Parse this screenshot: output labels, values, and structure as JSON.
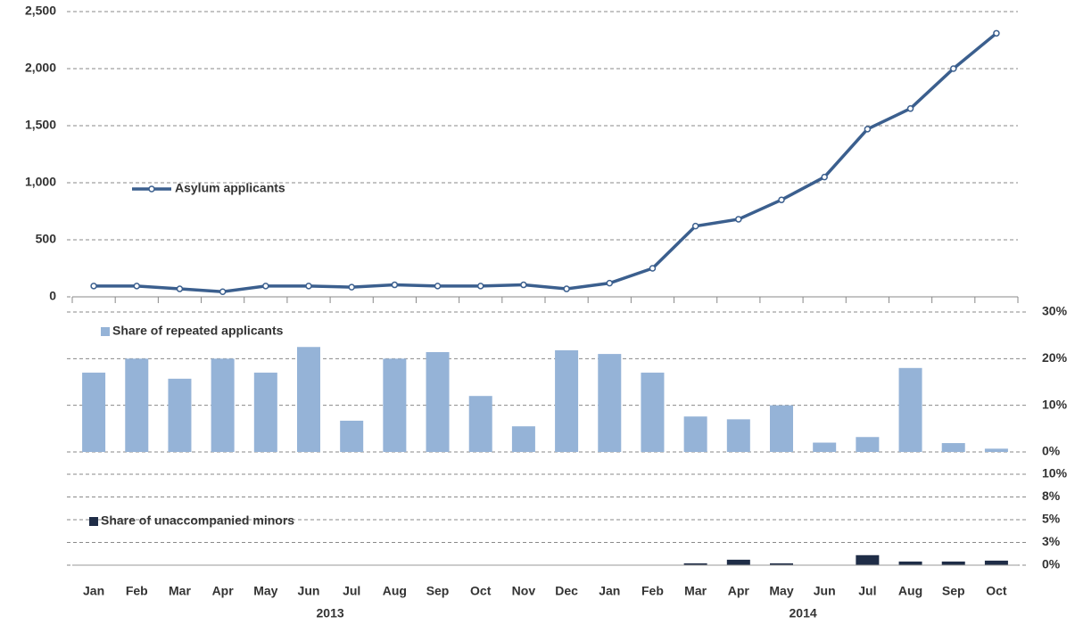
{
  "chart_data": [
    {
      "type": "line",
      "series": [
        {
          "name": "Asylum applicants",
          "color": "#3b5f8e",
          "values": [
            95,
            95,
            70,
            45,
            95,
            95,
            85,
            105,
            95,
            95,
            105,
            70,
            120,
            250,
            620,
            680,
            850,
            1050,
            1470,
            1650,
            2000,
            2310
          ]
        }
      ],
      "ylim": [
        0,
        2500
      ],
      "yticks": [
        0,
        500,
        {
          "value": 1000,
          "label": "1,000"
        },
        {
          "value": 1500,
          "label": "1,500"
        },
        {
          "value": 2000,
          "label": "2,000"
        },
        {
          "value": 2500,
          "label": "2,500"
        }
      ],
      "grid": true
    },
    {
      "type": "bar",
      "series": [
        {
          "name": "Share of repeated applicants",
          "color": "#95b3d7",
          "values": [
            17,
            20,
            15.7,
            20,
            17,
            22.5,
            6.7,
            20,
            21.4,
            12,
            5.5,
            21.8,
            21,
            17,
            7.6,
            7,
            10,
            2,
            3.2,
            18,
            1.9,
            0.7
          ]
        }
      ],
      "ylim": [
        0,
        30
      ],
      "yticks": [
        {
          "value": 0,
          "label": "0%"
        },
        {
          "value": 10,
          "label": "10%"
        },
        {
          "value": 20,
          "label": "20%"
        },
        {
          "value": 30,
          "label": "30%"
        }
      ],
      "grid": true
    },
    {
      "type": "bar",
      "series": [
        {
          "name": "Share of unaccompanied minors",
          "color": "#1f2d47",
          "values": [
            0,
            0,
            0,
            0,
            0,
            0,
            0,
            0,
            0,
            0,
            0,
            0,
            0,
            0,
            0.2,
            0.6,
            0.2,
            0,
            1.1,
            0.4,
            0.4,
            0.5
          ]
        }
      ],
      "ylim": [
        0,
        10
      ],
      "yticks": [
        {
          "value": 0,
          "label": "0%"
        },
        {
          "value": 2.5,
          "label": "3%"
        },
        {
          "value": 5,
          "label": "5%"
        },
        {
          "value": 7.5,
          "label": "8%"
        },
        {
          "value": 10,
          "label": "10%"
        }
      ],
      "grid": true,
      "categories": [
        "Jan",
        "Feb",
        "Mar",
        "Apr",
        "May",
        "Jun",
        "Jul",
        "Aug",
        "Sep",
        "Oct",
        "Nov",
        "Dec",
        "Jan",
        "Feb",
        "Mar",
        "Apr",
        "May",
        "Jun",
        "Jul",
        "Aug",
        "Sep",
        "Oct"
      ],
      "category_groups": [
        {
          "label": "2013",
          "count": 12
        },
        {
          "label": "2014",
          "count": 10
        }
      ]
    }
  ]
}
